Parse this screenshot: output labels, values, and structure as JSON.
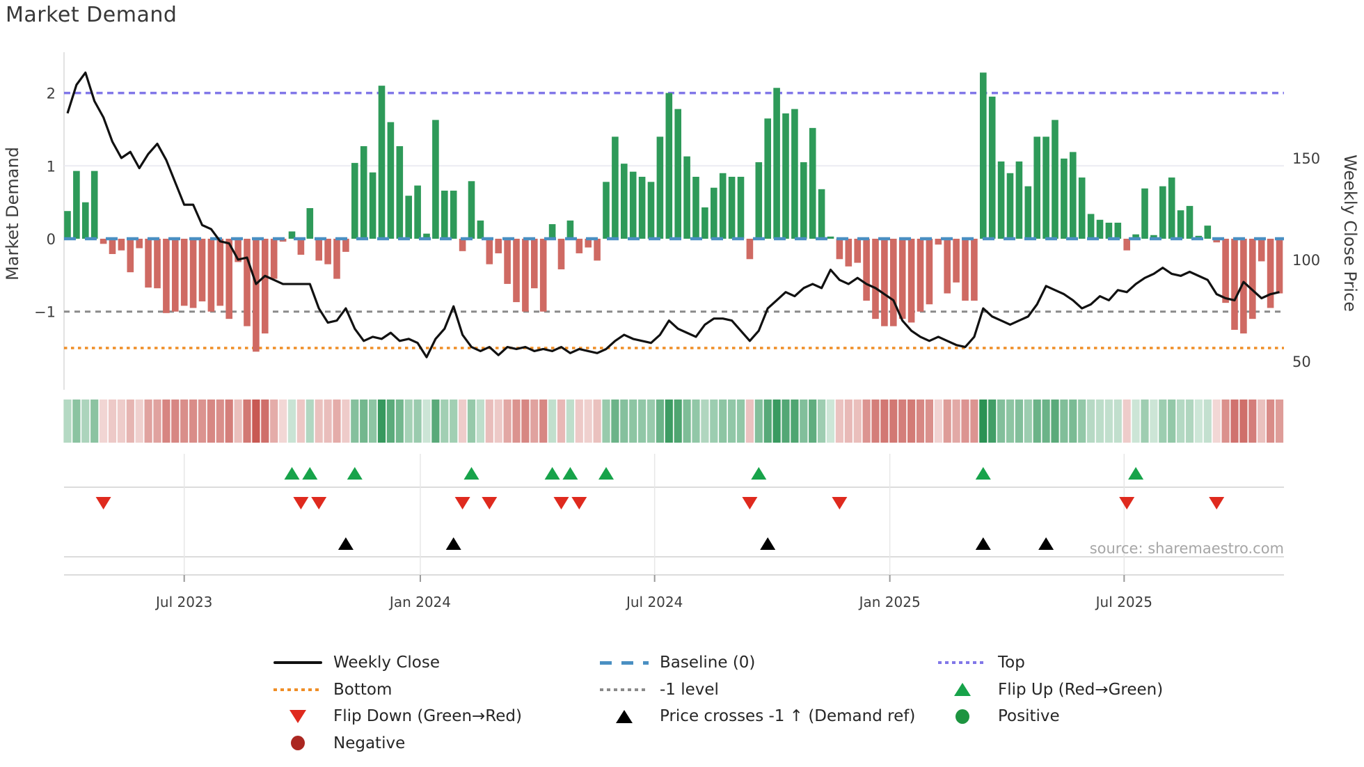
{
  "title": "Market Demand",
  "source": "source: sharemaestro.com",
  "axes": {
    "left_label": "Market Demand",
    "right_label": "Weekly Close Price",
    "left_ticks": [
      {
        "label": "2",
        "value": 2
      },
      {
        "label": "1",
        "value": 1
      },
      {
        "label": "0",
        "value": 0
      },
      {
        "label": "−1",
        "value": -1
      }
    ],
    "right_ticks": [
      {
        "label": "150",
        "value": 150
      },
      {
        "label": "100",
        "value": 100
      },
      {
        "label": "50",
        "value": 50
      }
    ],
    "x_ticks": [
      {
        "label": "Jul 2023",
        "week": 13
      },
      {
        "label": "Jan 2024",
        "week": 39.3
      },
      {
        "label": "Jul 2024",
        "week": 65.4
      },
      {
        "label": "Jan 2025",
        "week": 91.6
      },
      {
        "label": "Jul 2025",
        "week": 117.7
      }
    ]
  },
  "colors": {
    "bar_positive": "#2e9a59",
    "bar_negative": "#cf6a63",
    "price_line": "#111111",
    "baseline": "#4a8fc2",
    "top_level": "#8177e8",
    "minus_one_level": "#8a8a8a",
    "bottom_level": "#ef8e26",
    "flip_up": "#17a34a",
    "flip_down": "#df2a1e",
    "price_cross": "#000000",
    "positive_dot": "#1d9440",
    "negative_dot": "#ab2721",
    "grid": "#ebebf2",
    "panel_grid": "#dcdcdc"
  },
  "chart_data": {
    "type": "combo",
    "x_unit": "weeks",
    "x_span": "Apr 2023 - Oct 2025, one bar per week",
    "grid": "horizontal gridline at demand 1 only; legend below chart",
    "left_axis": {
      "label": "Market Demand",
      "ticks": [
        2,
        1,
        0,
        -1
      ],
      "range": [
        -2.07,
        2.56
      ]
    },
    "right_axis": {
      "label": "Weekly Close Price",
      "ticks": [
        150,
        100,
        50
      ],
      "range": [
        38,
        196
      ]
    },
    "levels": {
      "top": 2,
      "baseline": 0,
      "minus_one": -1,
      "bottom": -1.5
    },
    "series": [
      {
        "name": "Market Demand",
        "type": "bar",
        "axis": "left",
        "values": [
          0.38,
          0.93,
          0.5,
          0.93,
          -0.07,
          -0.21,
          -0.16,
          -0.46,
          -0.13,
          -0.67,
          -0.68,
          -1.02,
          -1.0,
          -0.92,
          -0.95,
          -0.86,
          -1.0,
          -0.92,
          -1.1,
          -0.32,
          -1.2,
          -1.55,
          -1.3,
          -0.55,
          -0.04,
          0.1,
          -0.22,
          0.42,
          -0.3,
          -0.35,
          -0.55,
          -0.18,
          1.04,
          1.27,
          0.91,
          2.1,
          1.6,
          1.27,
          0.59,
          0.73,
          0.07,
          1.63,
          0.66,
          0.66,
          -0.17,
          0.79,
          0.25,
          -0.35,
          -0.2,
          -0.62,
          -0.87,
          -1.0,
          -0.68,
          -1.0,
          0.2,
          -0.42,
          0.25,
          -0.2,
          -0.12,
          -0.3,
          0.78,
          1.4,
          1.03,
          0.92,
          0.85,
          0.78,
          1.4,
          2.0,
          1.78,
          1.13,
          0.85,
          0.43,
          0.7,
          0.9,
          0.85,
          0.85,
          -0.28,
          1.05,
          1.65,
          2.07,
          1.72,
          1.78,
          1.05,
          1.52,
          0.68,
          0.03,
          -0.28,
          -0.38,
          -0.33,
          -0.85,
          -1.1,
          -1.2,
          -1.2,
          -1.1,
          -1.15,
          -1.0,
          -0.9,
          -0.08,
          -0.75,
          -0.6,
          -0.85,
          -0.85,
          2.28,
          1.95,
          1.06,
          0.9,
          1.06,
          0.72,
          1.4,
          1.4,
          1.63,
          1.1,
          1.19,
          0.84,
          0.34,
          0.26,
          0.22,
          0.22,
          -0.16,
          0.06,
          0.69,
          0.05,
          0.72,
          0.84,
          0.39,
          0.45,
          0.04,
          0.18,
          -0.05,
          -0.88,
          -1.25,
          -1.3,
          -1.1,
          -0.31,
          -0.95,
          -0.75
        ]
      },
      {
        "name": "Weekly Close",
        "type": "line",
        "axis": "right",
        "values": [
          172,
          186,
          192,
          178,
          170,
          158,
          150,
          153,
          145,
          152,
          157,
          149,
          138,
          127,
          127,
          117,
          115,
          109,
          108,
          100,
          101,
          88,
          92,
          90,
          88,
          88,
          88,
          88,
          76,
          69,
          70,
          76,
          66,
          60,
          62,
          61,
          64,
          60,
          61,
          59,
          52,
          61,
          66,
          77,
          63,
          57,
          55,
          57,
          53,
          57,
          56,
          57,
          55,
          56,
          55,
          57,
          54,
          56,
          55,
          54,
          56,
          60,
          63,
          61,
          60,
          59,
          63,
          70,
          66,
          64,
          62,
          68,
          71,
          71,
          70,
          65,
          60,
          65,
          76,
          80,
          84,
          82,
          86,
          88,
          86,
          95,
          90,
          88,
          91,
          88,
          86,
          83,
          80,
          70,
          65,
          62,
          60,
          62,
          60,
          58,
          57,
          62,
          76,
          72,
          70,
          68,
          70,
          72,
          78,
          87,
          85,
          83,
          80,
          76,
          78,
          82,
          80,
          85,
          84,
          88,
          91,
          93,
          96,
          93,
          92,
          94,
          92,
          90,
          83,
          81,
          80,
          89,
          85,
          81,
          83,
          84
        ]
      },
      {
        "name": "Demand heatmap strip",
        "type": "heatmap",
        "derived_from": "Market Demand",
        "note": "one cell per week, green positive / red negative, opacity scales with magnitude"
      }
    ],
    "markers": {
      "flip_up_weeks": [
        25,
        27,
        32,
        45,
        54,
        56,
        60,
        77,
        102,
        119
      ],
      "flip_down_weeks": [
        4,
        26,
        28,
        44,
        47,
        55,
        57,
        76,
        86,
        118,
        128
      ],
      "price_cross_weeks": [
        31,
        43,
        78,
        102,
        109
      ]
    }
  },
  "legend": {
    "columns": [
      {
        "items": [
          {
            "symbol": "solid-line",
            "color": "#111111",
            "label": "Weekly Close"
          },
          {
            "symbol": "dotted-line",
            "color": "#ef8e26",
            "label": "Bottom"
          },
          {
            "symbol": "triangle-down",
            "color": "#df2a1e",
            "label": "Flip Down (Green→Red)"
          },
          {
            "symbol": "circle",
            "color": "#ab2721",
            "label": "Negative"
          }
        ]
      },
      {
        "items": [
          {
            "symbol": "dashed-line",
            "color": "#4a8fc2",
            "label": "Baseline (0)"
          },
          {
            "symbol": "dotted-line",
            "color": "#8a8a8a",
            "label": "-1 level"
          },
          {
            "symbol": "triangle-up",
            "color": "#000000",
            "label": "Price crosses -1 ↑ (Demand ref)"
          }
        ]
      },
      {
        "items": [
          {
            "symbol": "dotted-line",
            "color": "#8177e8",
            "label": "Top"
          },
          {
            "symbol": "triangle-up",
            "color": "#17a34a",
            "label": "Flip Up (Red→Green)"
          },
          {
            "symbol": "circle",
            "color": "#1d9440",
            "label": "Positive"
          }
        ]
      }
    ]
  }
}
